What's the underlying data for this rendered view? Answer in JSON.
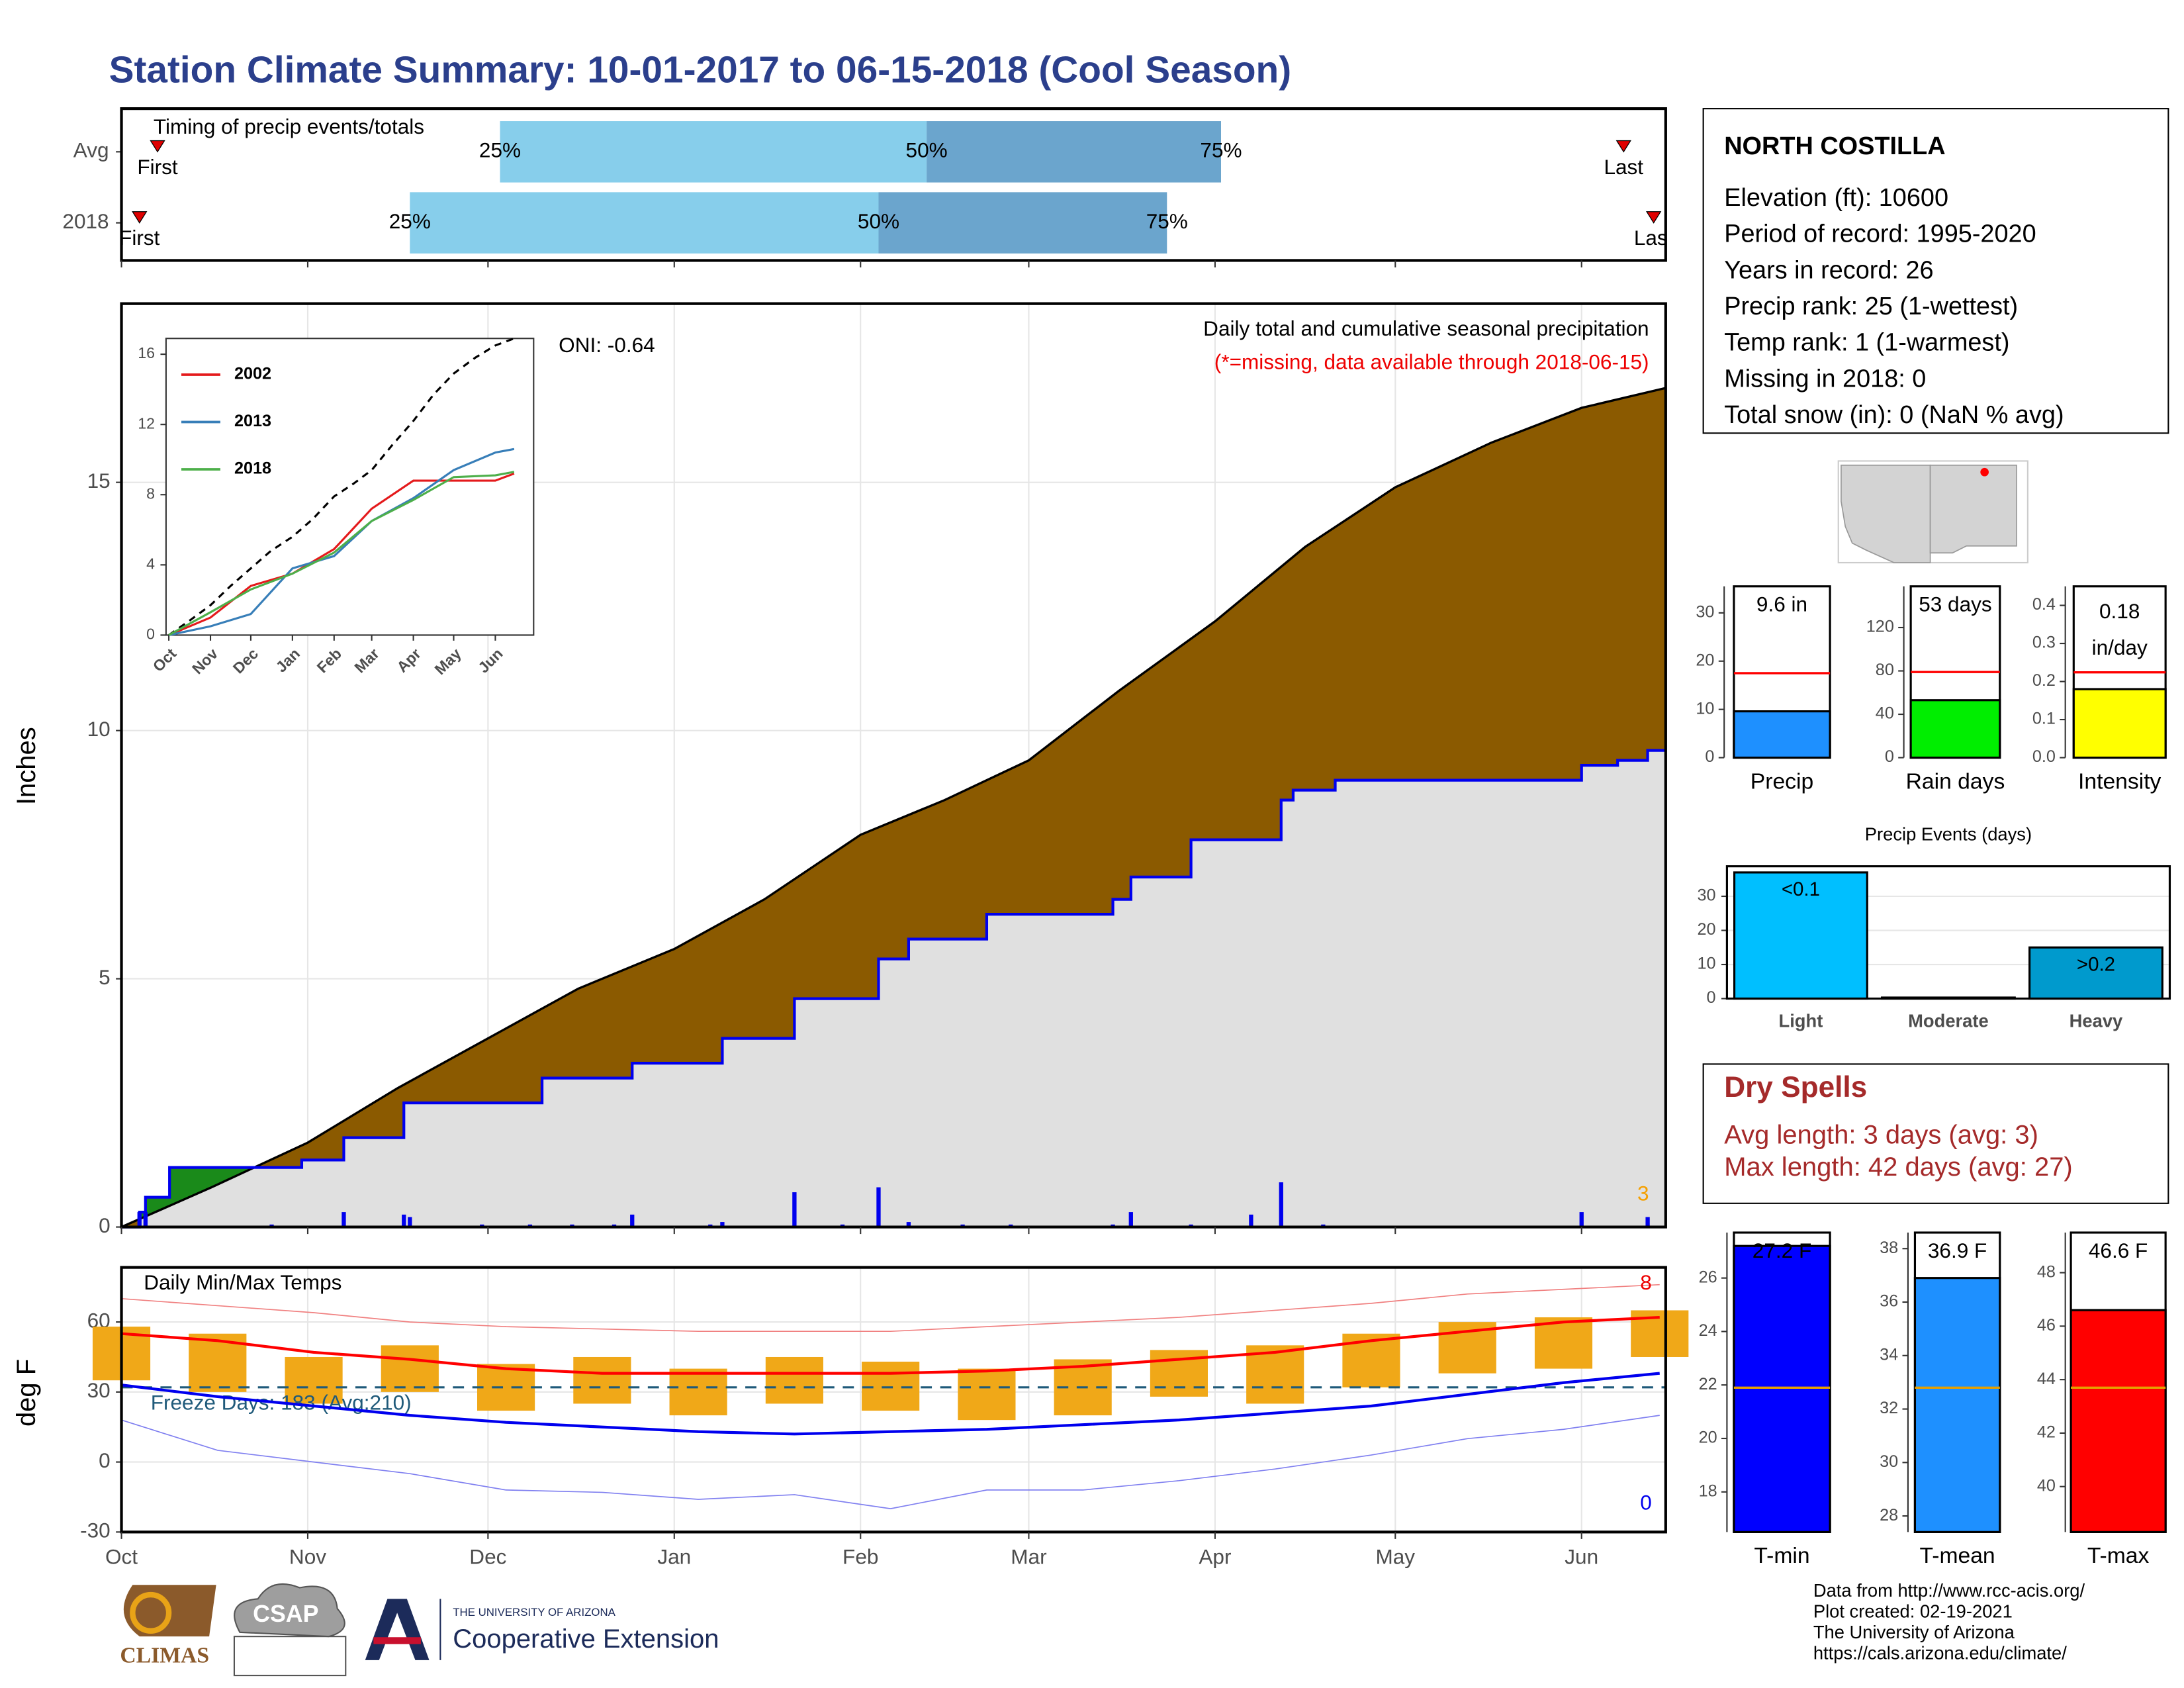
{
  "title": "Station Climate Summary: 10-01-2017 to 06-15-2018 (Cool Season)",
  "chart_data": [
    {
      "type": "timing",
      "title": "Timing of precip events/totals",
      "categories": [
        "Avg",
        "2018"
      ],
      "first": [
        6,
        3
      ],
      "last": [
        250,
        255
      ],
      "q25": [
        63,
        48
      ],
      "q50": [
        134,
        126
      ],
      "q75": [
        183,
        174
      ],
      "marker_labels": {
        "first": "First",
        "last": "Last",
        "q25": "25%",
        "q50": "50%",
        "q75": "75%"
      },
      "colors": {
        "early": "#87ceeb",
        "late": "#6ba5cd",
        "marker": "#e00000"
      },
      "xlim": [
        0,
        257
      ]
    },
    {
      "type": "cumulative",
      "ylabel": "Inches",
      "annotation": "Daily total and cumulative seasonal precipitation",
      "note": "(*=missing, data available through 2018-06-15)",
      "oni": "ONI: -0.64",
      "count_label": "3",
      "xlim": [
        0,
        257
      ],
      "xticks": [
        0,
        31,
        61,
        92,
        123,
        151,
        182,
        212,
        243
      ],
      "ylim": [
        0,
        18.6
      ],
      "yticks": [
        0,
        5,
        10,
        15
      ],
      "grid": true,
      "average": {
        "color": "#8b5a00",
        "x": [
          0,
          15,
          31,
          46,
          61,
          76,
          92,
          107,
          123,
          137,
          151,
          166,
          182,
          197,
          212,
          228,
          243,
          257
        ],
        "values": [
          0,
          0.8,
          1.7,
          2.8,
          3.8,
          4.8,
          5.6,
          6.6,
          7.9,
          8.6,
          9.4,
          10.8,
          12.2,
          13.7,
          14.9,
          15.8,
          16.5,
          16.9
        ]
      },
      "season": {
        "color": "#0000ee",
        "above_color": "#1a8a1a",
        "fill": "#e0e0e0",
        "x": [
          0,
          3,
          3,
          4,
          4,
          8,
          8,
          30,
          30,
          37,
          37,
          47,
          47,
          70,
          70,
          85,
          85,
          100,
          100,
          112,
          112,
          126,
          126,
          131,
          131,
          144,
          144,
          165,
          165,
          168,
          168,
          178,
          178,
          193,
          193,
          195,
          195,
          202,
          202,
          243,
          243,
          249,
          249,
          254,
          254,
          257
        ],
        "values": [
          0,
          0,
          0.3,
          0.3,
          0.6,
          0.6,
          1.2,
          1.2,
          1.35,
          1.35,
          1.8,
          1.8,
          2.5,
          2.5,
          3.0,
          3.0,
          3.3,
          3.3,
          3.8,
          3.8,
          4.6,
          4.6,
          5.4,
          5.4,
          5.8,
          5.8,
          6.3,
          6.3,
          6.6,
          6.6,
          7.05,
          7.05,
          7.8,
          7.8,
          8.6,
          8.6,
          8.8,
          8.8,
          9.0,
          9.0,
          9.3,
          9.3,
          9.4,
          9.4,
          9.6,
          9.6
        ]
      },
      "daily": {
        "color": "#0000ee",
        "x": [
          3,
          4,
          25,
          37,
          47,
          48,
          60,
          68,
          75,
          82,
          85,
          98,
          100,
          112,
          120,
          126,
          131,
          140,
          148,
          165,
          168,
          178,
          188,
          193,
          200,
          243,
          254
        ],
        "values": [
          0.3,
          0.3,
          0.05,
          0.3,
          0.25,
          0.2,
          0.05,
          0.05,
          0.05,
          0.05,
          0.25,
          0.05,
          0.1,
          0.7,
          0.05,
          0.8,
          0.1,
          0.05,
          0.05,
          0.05,
          0.3,
          0.05,
          0.25,
          0.9,
          0.05,
          0.3,
          0.2
        ]
      }
    },
    {
      "type": "line",
      "x": [
        0,
        31,
        61,
        92,
        123,
        151,
        182,
        212,
        243,
        257
      ],
      "xlim": [
        0,
        257
      ],
      "xticks": [
        {
          "value": 0,
          "label": "Oct"
        },
        {
          "value": 31,
          "label": "Nov"
        },
        {
          "value": 61,
          "label": "Dec"
        },
        {
          "value": 92,
          "label": "Jan"
        },
        {
          "value": 123,
          "label": "Feb"
        },
        {
          "value": 151,
          "label": "Mar"
        },
        {
          "value": 182,
          "label": "Apr"
        },
        {
          "value": 212,
          "label": "May"
        },
        {
          "value": 243,
          "label": "Jun"
        }
      ],
      "ylim": [
        0,
        16.9
      ],
      "yticks": [
        0,
        4,
        8,
        12,
        16
      ],
      "series": [
        {
          "name": "2002",
          "color": "#e41a1c",
          "values": [
            0,
            1.0,
            2.8,
            3.5,
            4.9,
            7.2,
            8.8,
            8.8,
            8.8,
            9.2
          ]
        },
        {
          "name": "2013",
          "color": "#377eb8",
          "values": [
            0,
            0.5,
            1.2,
            3.8,
            4.5,
            6.5,
            7.8,
            9.4,
            10.4,
            10.6
          ]
        },
        {
          "name": "2018",
          "color": "#4daf4a",
          "values": [
            0,
            1.3,
            2.6,
            3.5,
            4.7,
            6.5,
            7.7,
            9.0,
            9.1,
            9.3
          ]
        }
      ]
    },
    {
      "type": "summary_bars",
      "average_color": "#ff0000",
      "panels": [
        {
          "label": "Precip",
          "value": 9.6,
          "value_labels": [
            "9.6 in"
          ],
          "average": 17.5,
          "color": "#1e90ff",
          "ylim": [
            0,
            35.5
          ],
          "yticks": [
            0,
            10,
            20,
            30
          ]
        },
        {
          "label": "Rain days",
          "value": 53,
          "value_labels": [
            "53 days"
          ],
          "average": 79,
          "color": "#00ee00",
          "ylim": [
            0,
            158
          ],
          "yticks": [
            0,
            40,
            80,
            120
          ]
        },
        {
          "label": "Intensity",
          "value": 0.18,
          "value_labels": [
            "0.18",
            "in/day"
          ],
          "average": 0.224,
          "color": "#ffff00",
          "ylim": [
            0,
            0.45
          ],
          "yticks": [
            {
              "value": 0,
              "label": "0.0"
            },
            0.1,
            0.2,
            0.3,
            0.4
          ]
        }
      ]
    },
    {
      "type": "bar",
      "title": "Precip Events (days)",
      "categories": [
        "Light",
        "Moderate",
        "Heavy"
      ],
      "values": [
        37,
        0.3,
        15
      ],
      "bar_labels": [
        "<0.1",
        null,
        ">0.2"
      ],
      "colors": [
        "#00bfff",
        "#1e90ff",
        "#009acd"
      ],
      "ylim": [
        0,
        38.8
      ],
      "yticks": [
        0,
        10,
        20,
        30
      ],
      "grid": true
    },
    {
      "type": "temps",
      "title": "Daily Min/Max Temps",
      "ylabel": "deg F",
      "xlim": [
        0,
        257
      ],
      "xticks": [
        {
          "value": 0,
          "label": "Oct"
        },
        {
          "value": 31,
          "label": "Nov"
        },
        {
          "value": 61,
          "label": "Dec"
        },
        {
          "value": 92,
          "label": "Jan"
        },
        {
          "value": 123,
          "label": "Feb"
        },
        {
          "value": 151,
          "label": "Mar"
        },
        {
          "value": 182,
          "label": "Apr"
        },
        {
          "value": 212,
          "label": "May"
        },
        {
          "value": 243,
          "label": "Jun"
        }
      ],
      "ylim": [
        -30,
        83.4
      ],
      "yticks": [
        -30,
        0,
        30,
        60
      ],
      "grid": true,
      "x": [
        0,
        16,
        32,
        48,
        64,
        80,
        96,
        112,
        128,
        144,
        160,
        176,
        192,
        208,
        224,
        240,
        256
      ],
      "avg_max": {
        "color": "#ff0000",
        "values": [
          55,
          52,
          47,
          44,
          40,
          38,
          38,
          38,
          38,
          39,
          41,
          44,
          47,
          52,
          56,
          60,
          62
        ]
      },
      "avg_min": {
        "color": "#0000ee",
        "values": [
          33,
          28,
          24,
          20,
          17,
          15,
          13,
          12,
          13,
          14,
          16,
          18,
          21,
          24,
          29,
          34,
          38
        ]
      },
      "record_max": {
        "color": "#f08080",
        "values": [
          70,
          67,
          64,
          60,
          58,
          57,
          56,
          56,
          56,
          58,
          60,
          62,
          65,
          68,
          72,
          74,
          76
        ]
      },
      "record_min": {
        "color": "#8080f0",
        "values": [
          18,
          5,
          0,
          -5,
          -12,
          -13,
          -16,
          -14,
          -20,
          -12,
          -12,
          -8,
          -3,
          3,
          10,
          14,
          20
        ]
      },
      "max": {
        "color": "#f0a818",
        "values": [
          58,
          55,
          45,
          50,
          42,
          45,
          40,
          45,
          43,
          40,
          44,
          48,
          50,
          55,
          60,
          62,
          65
        ]
      },
      "min": {
        "values": [
          35,
          30,
          25,
          30,
          22,
          25,
          20,
          25,
          22,
          18,
          20,
          28,
          25,
          32,
          38,
          40,
          45
        ]
      },
      "freeze": {
        "value": 32,
        "label": "Freeze Days: 183 (Avg:210)",
        "color": "#1f5a7a"
      },
      "count_hot": "8",
      "count_cold": "0"
    },
    {
      "type": "summary_bars",
      "average_color": "#e69f00",
      "panels": [
        {
          "label": "T-min",
          "value": 27.2,
          "value_labels": [
            "27.2 F"
          ],
          "average": 21.9,
          "color": "#0000ff",
          "ylim": [
            16.5,
            27.7
          ],
          "yticks": [
            18,
            20,
            22,
            24,
            26
          ]
        },
        {
          "label": "T-mean",
          "value": 36.9,
          "value_labels": [
            "36.9 F"
          ],
          "average": 32.8,
          "color": "#1e90ff",
          "ylim": [
            27.4,
            38.6
          ],
          "yticks": [
            28,
            30,
            32,
            34,
            36,
            38
          ]
        },
        {
          "label": "T-max",
          "value": 46.6,
          "value_labels": [
            "46.6 F"
          ],
          "average": 43.7,
          "color": "#ff0000",
          "ylim": [
            38.3,
            49.5
          ],
          "yticks": [
            40,
            42,
            44,
            46,
            48
          ]
        }
      ]
    }
  ],
  "station": {
    "name": "NORTH COSTILLA",
    "lines": [
      "Elevation (ft): 10600",
      "Period of record: 1995-2020",
      "Years in record: 26",
      "Precip rank: 25 (1-wettest)",
      "Temp rank: 1 (1-warmest)",
      "Missing in 2018: 0",
      "Total snow (in): 0 (NaN % avg)"
    ]
  },
  "dry_spells": {
    "title": "Dry Spells",
    "lines": [
      "Avg length: 3 days (avg: 3)",
      "Max length: 42 days (avg: 27)"
    ]
  },
  "footer": {
    "logos": [
      "CLIMAS",
      "CSAP",
      "THE UNIVERSITY OF ARIZONA",
      "Cooperative Extension"
    ],
    "credits": [
      "Data from http://www.rcc-acis.org/",
      "Plot created: 02-19-2021",
      "The University of Arizona",
      "https://cals.arizona.edu/climate/"
    ]
  }
}
